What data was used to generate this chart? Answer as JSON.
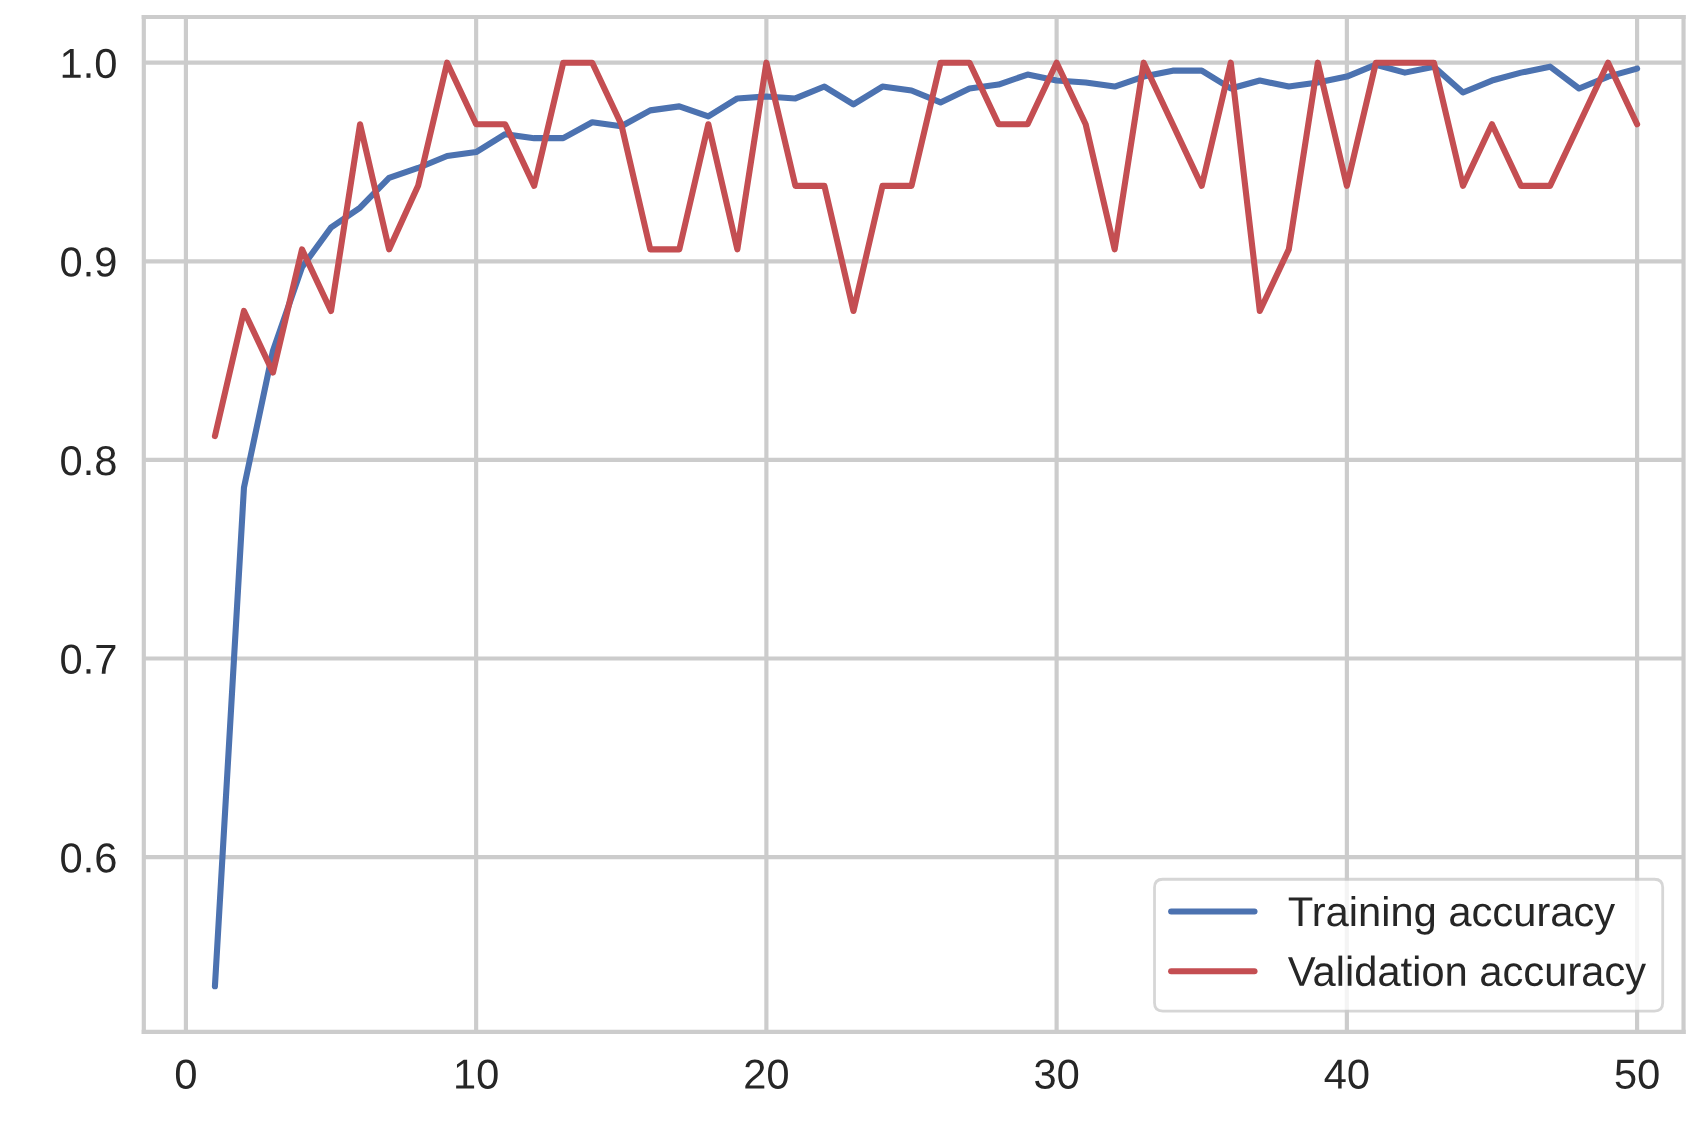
{
  "chart_data": {
    "type": "line",
    "x": [
      1,
      2,
      3,
      4,
      5,
      6,
      7,
      8,
      9,
      10,
      11,
      12,
      13,
      14,
      15,
      16,
      17,
      18,
      19,
      20,
      21,
      22,
      23,
      24,
      25,
      26,
      27,
      28,
      29,
      30,
      31,
      32,
      33,
      34,
      35,
      36,
      37,
      38,
      39,
      40,
      41,
      42,
      43,
      44,
      45,
      46,
      47,
      48,
      49,
      50
    ],
    "series": [
      {
        "name": "Training accuracy",
        "color": "#4c72b0",
        "values": [
          0.535,
          0.786,
          0.855,
          0.897,
          0.917,
          0.927,
          0.942,
          0.947,
          0.953,
          0.955,
          0.964,
          0.962,
          0.962,
          0.97,
          0.968,
          0.976,
          0.978,
          0.973,
          0.982,
          0.983,
          0.982,
          0.988,
          0.979,
          0.988,
          0.986,
          0.98,
          0.987,
          0.989,
          0.994,
          0.991,
          0.99,
          0.988,
          0.993,
          0.996,
          0.996,
          0.987,
          0.991,
          0.988,
          0.99,
          0.993,
          0.999,
          0.995,
          0.998,
          0.985,
          0.991,
          0.995,
          0.998,
          0.987,
          0.993,
          0.997
        ]
      },
      {
        "name": "Validation accuracy",
        "color": "#c44e52",
        "values": [
          0.812,
          0.875,
          0.844,
          0.906,
          0.875,
          0.969,
          0.906,
          0.938,
          1.0,
          0.969,
          0.969,
          0.938,
          1.0,
          1.0,
          0.969,
          0.906,
          0.906,
          0.969,
          0.906,
          1.0,
          0.938,
          0.938,
          0.875,
          0.938,
          0.938,
          1.0,
          1.0,
          0.969,
          0.969,
          1.0,
          0.969,
          0.906,
          1.0,
          0.969,
          0.938,
          1.0,
          0.875,
          0.906,
          1.0,
          0.938,
          1.0,
          1.0,
          1.0,
          0.938,
          0.969,
          0.938,
          0.938,
          0.969,
          1.0,
          0.969
        ]
      }
    ],
    "xlim": [
      -1.45,
      51.6
    ],
    "ylim": [
      0.512,
      1.023
    ],
    "xticks": [
      0,
      10,
      20,
      30,
      40,
      50
    ],
    "yticks": [
      {
        "value": 0.6,
        "label": "0.6"
      },
      {
        "value": 0.7,
        "label": "0.7"
      },
      {
        "value": 0.8,
        "label": "0.8"
      },
      {
        "value": 0.9,
        "label": "0.9"
      },
      {
        "value": 1.0,
        "label": "1.0"
      }
    ],
    "grid": true,
    "legend": "lower right",
    "marker": "none",
    "line_style": "solid"
  }
}
